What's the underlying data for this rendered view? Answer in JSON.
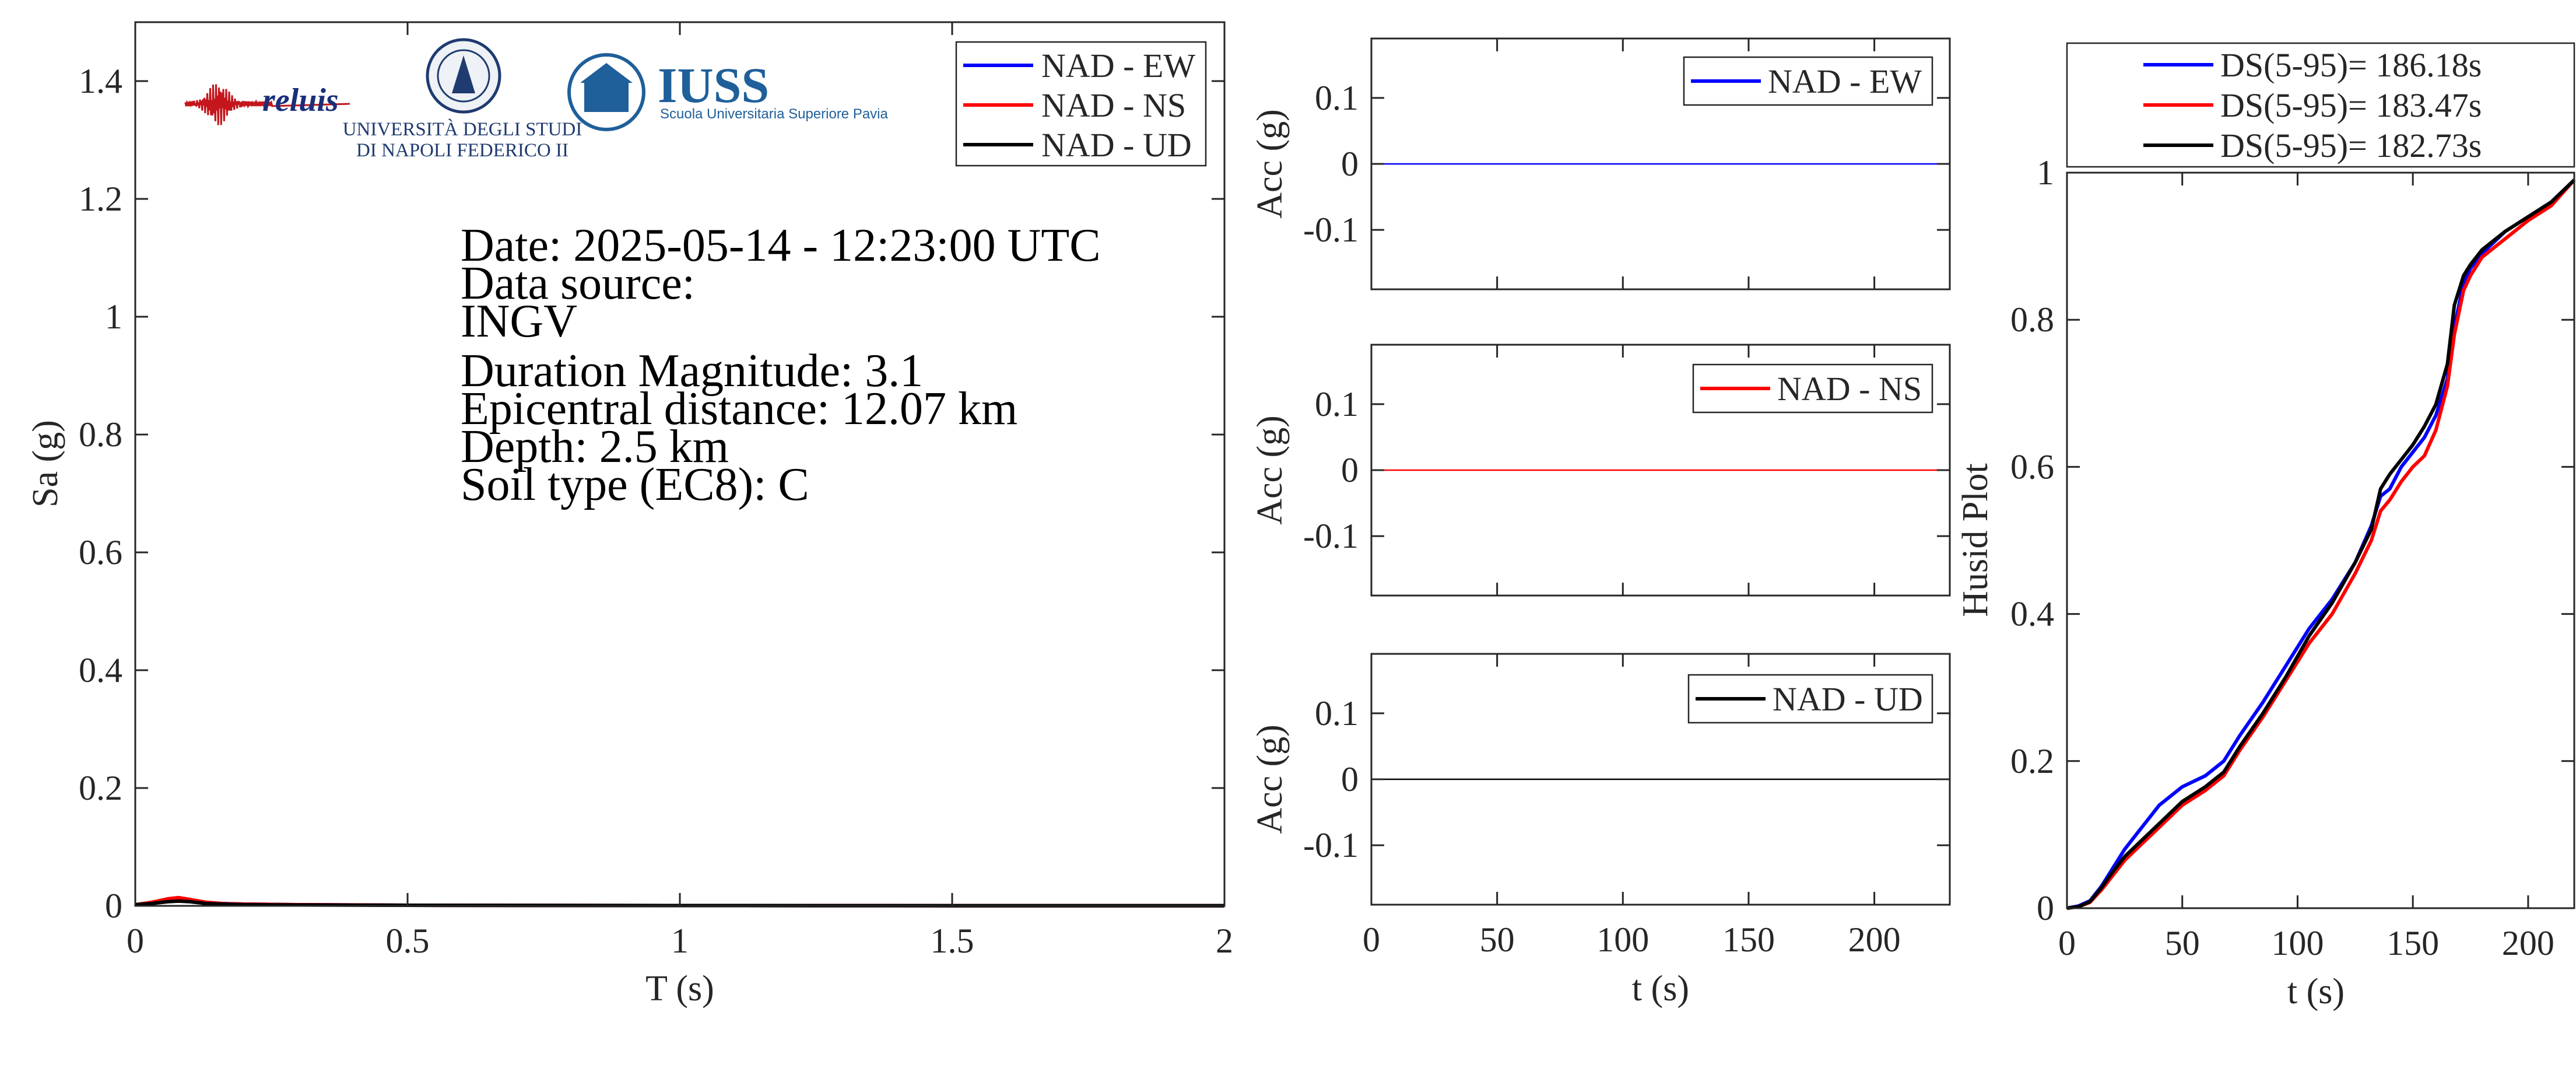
{
  "colors": {
    "ew": "#0000ff",
    "ns": "#ff0000",
    "ud": "#000000",
    "axis": "#262626"
  },
  "logos": {
    "reluis": "reluis",
    "unina_line1": "UNIVERSITÀ DEGLI STUDI",
    "unina_line2": "DI NAPOLI FEDERICO II",
    "iuss_title": "IUSS",
    "iuss_sub": "Scuola Universitaria Superiore Pavia"
  },
  "info": {
    "date": "Date: 2025-05-14 - 12:23:00 UTC",
    "source_label": "Data source:",
    "source": "INGV",
    "magnitude": "Duration Magnitude: 3.1",
    "distance": "Epicentral distance: 12.07 km",
    "depth": "Depth: 2.5 km",
    "soil": "Soil type (EC8): C"
  },
  "chart_data": [
    {
      "type": "line",
      "xlabel": "T (s)",
      "ylabel": "Sa (g)",
      "xlim": [
        0,
        2
      ],
      "ylim": [
        0,
        1.5
      ],
      "xticks": [
        0,
        0.5,
        1,
        1.5,
        2
      ],
      "xtick_labels": [
        "0",
        "0.5",
        "1",
        "1.5",
        "2"
      ],
      "yticks": [
        0,
        0.2,
        0.4,
        0.6,
        0.8,
        1,
        1.2,
        1.4
      ],
      "ytick_labels": [
        "0",
        "0.2",
        "0.4",
        "0.6",
        "0.8",
        "1",
        "1.2",
        "1.4"
      ],
      "legend_position": "top-right",
      "series": [
        {
          "name": "NAD - EW",
          "color": "#0000ff",
          "x": [
            0,
            0.03,
            0.06,
            0.08,
            0.1,
            0.13,
            0.16,
            0.2,
            0.3,
            0.5,
            1,
            1.5,
            2
          ],
          "y": [
            0.002,
            0.005,
            0.009,
            0.011,
            0.009,
            0.005,
            0.004,
            0.003,
            0.002,
            0.001,
            0.0005,
            0.0003,
            0.0002
          ]
        },
        {
          "name": "NAD - NS",
          "color": "#ff0000",
          "x": [
            0,
            0.03,
            0.06,
            0.08,
            0.1,
            0.13,
            0.16,
            0.2,
            0.3,
            0.5,
            1,
            1.5,
            2
          ],
          "y": [
            0.002,
            0.006,
            0.012,
            0.014,
            0.011,
            0.006,
            0.004,
            0.003,
            0.002,
            0.001,
            0.0005,
            0.0003,
            0.0002
          ]
        },
        {
          "name": "NAD - UD",
          "color": "#000000",
          "x": [
            0,
            0.03,
            0.06,
            0.08,
            0.1,
            0.13,
            0.16,
            0.2,
            0.3,
            0.5,
            1,
            1.5,
            2
          ],
          "y": [
            0.002,
            0.004,
            0.007,
            0.008,
            0.007,
            0.004,
            0.003,
            0.002,
            0.0015,
            0.001,
            0.0005,
            0.0003,
            0.0002
          ]
        }
      ]
    },
    {
      "type": "line",
      "xlabel": "",
      "ylabel": "Acc (g)",
      "xlim": [
        0,
        230
      ],
      "ylim": [
        -0.19,
        0.19
      ],
      "yticks": [
        0.1,
        0,
        -0.1
      ],
      "ytick_labels": [
        "0.1",
        "0",
        "-0.1"
      ],
      "legend_position": "top-right",
      "series": [
        {
          "name": "NAD - EW",
          "color": "#0000ff",
          "x": [
            0,
            230
          ],
          "y": [
            0,
            0
          ]
        }
      ]
    },
    {
      "type": "line",
      "xlabel": "",
      "ylabel": "Acc (g)",
      "xlim": [
        0,
        230
      ],
      "ylim": [
        -0.19,
        0.19
      ],
      "yticks": [
        0.1,
        0,
        -0.1
      ],
      "ytick_labels": [
        "0.1",
        "0",
        "-0.1"
      ],
      "legend_position": "top-right",
      "series": [
        {
          "name": "NAD - NS",
          "color": "#ff0000",
          "x": [
            0,
            230
          ],
          "y": [
            0,
            0
          ]
        }
      ]
    },
    {
      "type": "line",
      "xlabel": "t (s)",
      "ylabel": "Acc (g)",
      "xlim": [
        0,
        230
      ],
      "ylim": [
        -0.19,
        0.19
      ],
      "xticks": [
        0,
        50,
        100,
        150,
        200
      ],
      "xtick_labels": [
        "0",
        "50",
        "100",
        "150",
        "200"
      ],
      "yticks": [
        0.1,
        0,
        -0.1
      ],
      "ytick_labels": [
        "0.1",
        "0",
        "-0.1"
      ],
      "legend_position": "top-right",
      "series": [
        {
          "name": "NAD - UD",
          "color": "#000000",
          "x": [
            0,
            230
          ],
          "y": [
            0,
            0
          ]
        }
      ]
    },
    {
      "type": "line",
      "xlabel": "t (s)",
      "ylabel": "Husid Plot",
      "xlim": [
        0,
        220
      ],
      "ylim": [
        0,
        1
      ],
      "xticks": [
        0,
        50,
        100,
        150,
        200
      ],
      "xtick_labels": [
        "0",
        "50",
        "100",
        "150",
        "200"
      ],
      "yticks": [
        0,
        0.2,
        0.4,
        0.6,
        0.8,
        1
      ],
      "ytick_labels": [
        "0",
        "0.2",
        "0.4",
        "0.6",
        "0.8",
        "1"
      ],
      "legend_position": "top-outside",
      "series": [
        {
          "name": "DS(5-95)= 186.18s",
          "color": "#0000ff",
          "x": [
            0,
            5,
            10,
            15,
            20,
            25,
            30,
            40,
            50,
            60,
            68,
            75,
            85,
            95,
            105,
            115,
            125,
            132,
            136,
            140,
            145,
            150,
            155,
            160,
            165,
            168,
            172,
            175,
            180,
            190,
            200,
            210,
            220
          ],
          "y": [
            0,
            0.003,
            0.01,
            0.03,
            0.055,
            0.08,
            0.1,
            0.14,
            0.165,
            0.18,
            0.2,
            0.235,
            0.28,
            0.33,
            0.38,
            0.42,
            0.47,
            0.52,
            0.56,
            0.57,
            0.6,
            0.62,
            0.64,
            0.67,
            0.72,
            0.79,
            0.85,
            0.87,
            0.89,
            0.92,
            0.94,
            0.96,
            0.99
          ]
        },
        {
          "name": "DS(5-95)= 183.47s",
          "color": "#ff0000",
          "x": [
            0,
            5,
            10,
            15,
            20,
            25,
            30,
            40,
            50,
            60,
            68,
            75,
            85,
            95,
            105,
            115,
            125,
            132,
            136,
            140,
            145,
            150,
            155,
            160,
            165,
            168,
            172,
            175,
            180,
            190,
            200,
            210,
            220
          ],
          "y": [
            0,
            0.002,
            0.008,
            0.025,
            0.045,
            0.065,
            0.08,
            0.11,
            0.14,
            0.16,
            0.18,
            0.215,
            0.26,
            0.31,
            0.36,
            0.4,
            0.455,
            0.5,
            0.54,
            0.555,
            0.58,
            0.6,
            0.615,
            0.65,
            0.71,
            0.78,
            0.84,
            0.86,
            0.885,
            0.91,
            0.935,
            0.955,
            0.99
          ]
        },
        {
          "name": "DS(5-95)= 182.73s",
          "color": "#000000",
          "x": [
            0,
            5,
            10,
            15,
            20,
            25,
            30,
            40,
            50,
            60,
            68,
            75,
            85,
            95,
            105,
            115,
            125,
            132,
            136,
            140,
            145,
            150,
            155,
            160,
            165,
            168,
            172,
            175,
            180,
            190,
            200,
            210,
            220
          ],
          "y": [
            0,
            0.002,
            0.009,
            0.028,
            0.05,
            0.07,
            0.085,
            0.115,
            0.145,
            0.165,
            0.185,
            0.22,
            0.265,
            0.315,
            0.37,
            0.415,
            0.47,
            0.515,
            0.57,
            0.59,
            0.61,
            0.63,
            0.655,
            0.685,
            0.74,
            0.82,
            0.86,
            0.875,
            0.895,
            0.92,
            0.94,
            0.96,
            0.99
          ]
        }
      ]
    }
  ]
}
